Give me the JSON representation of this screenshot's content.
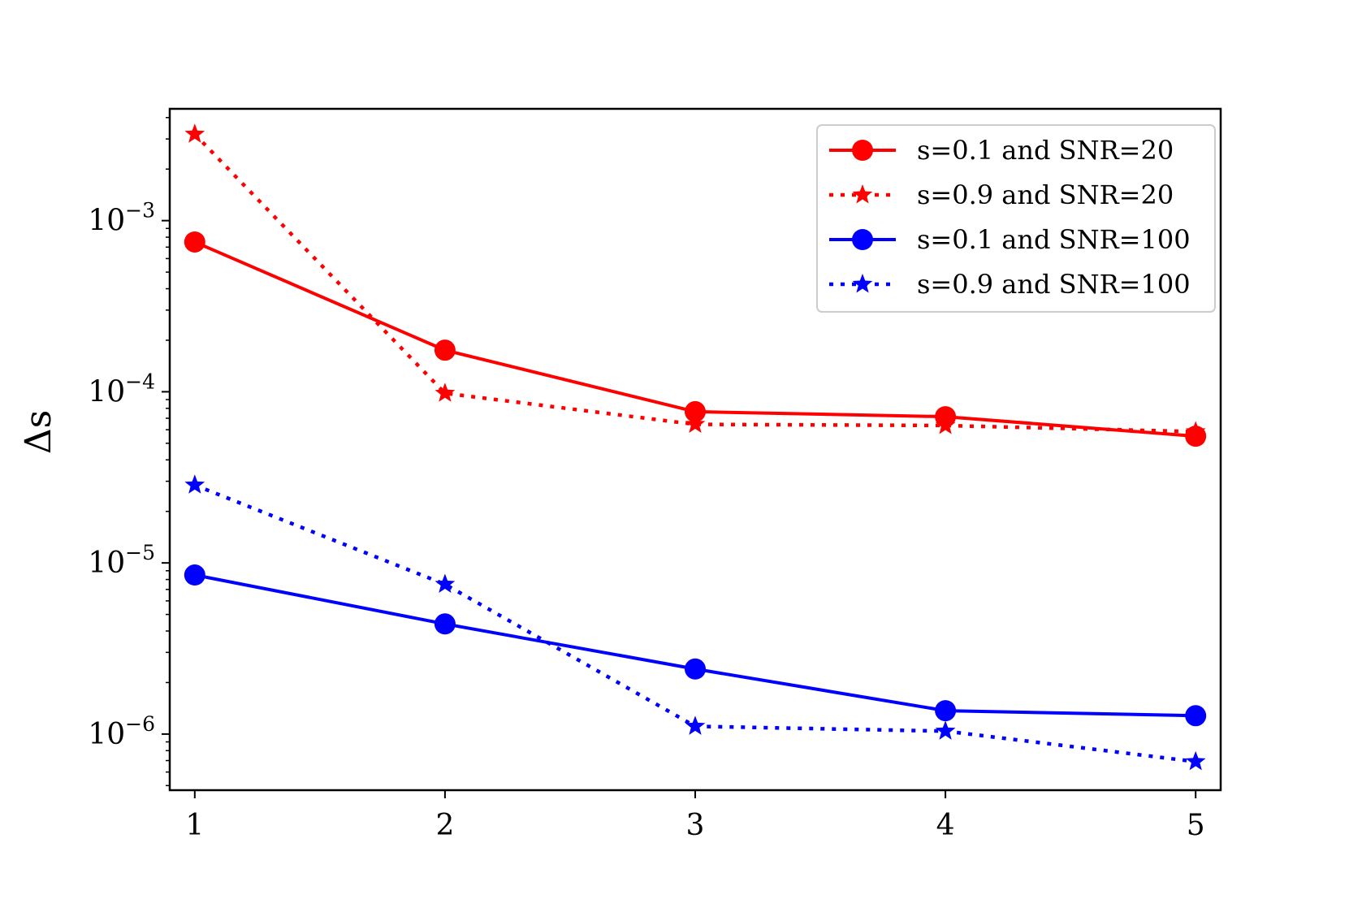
{
  "chart_data": {
    "type": "line",
    "title": "",
    "xlabel": "",
    "ylabel": "Δs",
    "yscale": "log",
    "x": [
      1,
      2,
      3,
      4,
      5
    ],
    "xticks": [
      "1",
      "2",
      "3",
      "4",
      "5"
    ],
    "yticks": [
      {
        "value": 1e-06,
        "base": "10",
        "exp": "−6"
      },
      {
        "value": 1e-05,
        "base": "10",
        "exp": "−5"
      },
      {
        "value": 0.0001,
        "base": "10",
        "exp": "−4"
      },
      {
        "value": 0.001,
        "base": "10",
        "exp": "−3"
      }
    ],
    "xlim": [
      0.9,
      5.1
    ],
    "ylim": [
      4.7e-07,
      0.0045
    ],
    "grid": false,
    "legend_position": "top-right",
    "series": [
      {
        "name": "s=0.1 and SNR=20",
        "color": "#ff0000",
        "linestyle": "solid",
        "marker": "circle",
        "values": [
          0.00075,
          0.000175,
          7.65e-05,
          7.15e-05,
          5.5e-05
        ]
      },
      {
        "name": "s=0.9 and SNR=20",
        "color": "#ff0000",
        "linestyle": "dotted",
        "marker": "star",
        "values": [
          0.0032,
          9.8e-05,
          6.45e-05,
          6.35e-05,
          5.85e-05
        ]
      },
      {
        "name": "s=0.1 and SNR=100",
        "color": "#0000ff",
        "linestyle": "solid",
        "marker": "circle",
        "values": [
          8.5e-06,
          4.4e-06,
          2.4e-06,
          1.37e-06,
          1.28e-06
        ]
      },
      {
        "name": "s=0.9 and SNR=100",
        "color": "#0000ff",
        "linestyle": "dotted",
        "marker": "star",
        "values": [
          2.85e-05,
          7.5e-06,
          1.11e-06,
          1.04e-06,
          6.9e-07
        ]
      }
    ]
  }
}
